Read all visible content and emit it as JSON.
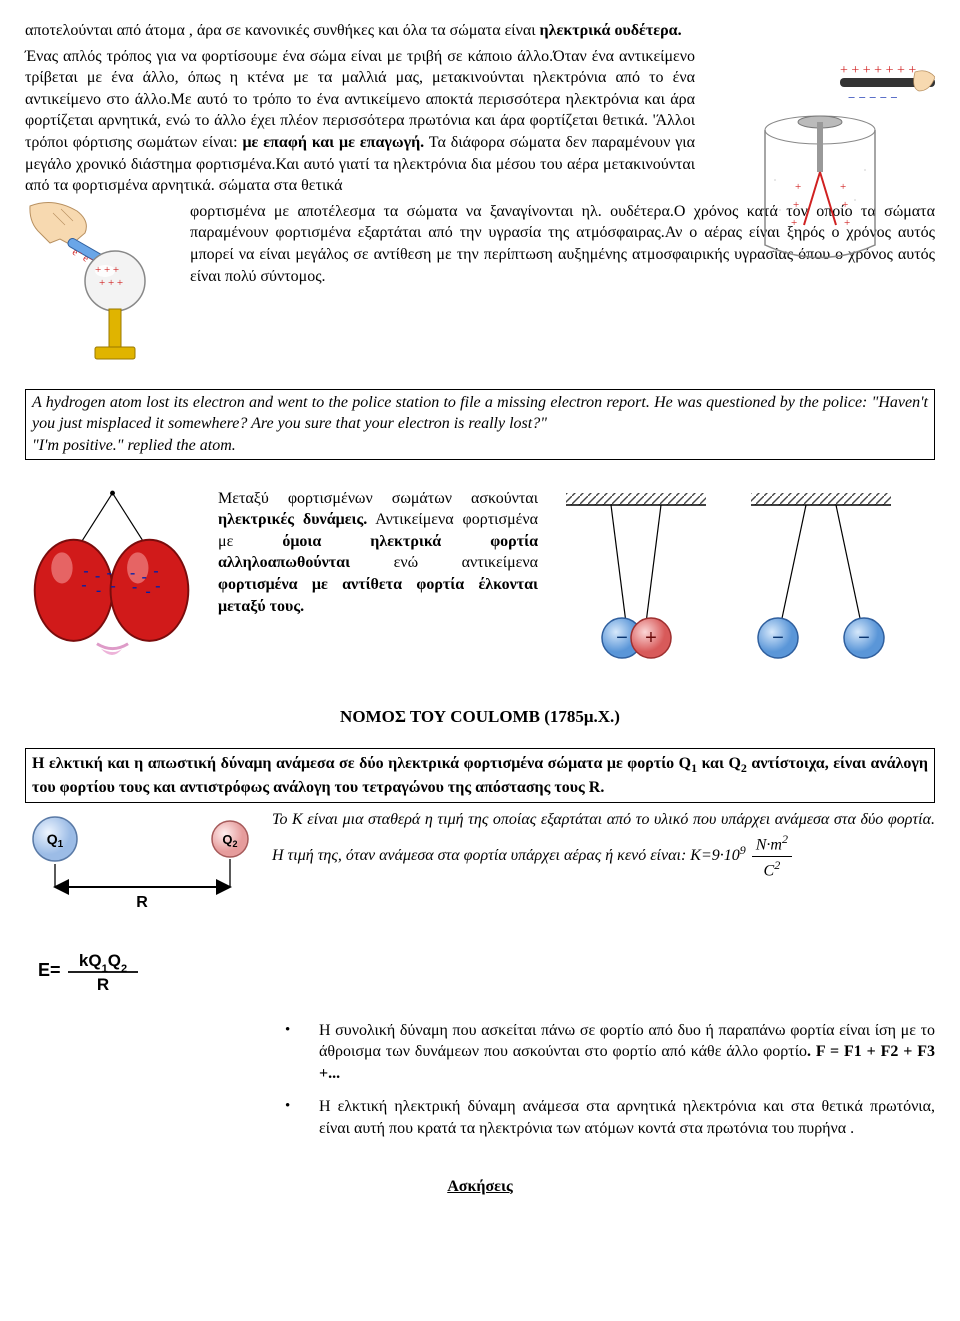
{
  "colors": {
    "text": "#000000",
    "background": "#ffffff",
    "border": "#000000",
    "balloon_fill": "#d11a1a",
    "balloon_stroke": "#7a0c0c",
    "balloon_shine": "#f5baba",
    "hand_fill": "#f7d9b0",
    "sphere_fill": "#e8e8e8",
    "sphere_stroke": "#888888",
    "stand_fill": "#e0b400",
    "charge_minus_fill": "#6aa6e8",
    "charge_minus_stroke": "#2f5f9e",
    "charge_plus_fill": "#e86a6a",
    "charge_plus_stroke": "#9e2f2f",
    "q1_fill": "#c8d8ef",
    "q2_fill": "#efc8c8",
    "red_charge": "#d02020",
    "rod_fill": "#333333",
    "jar_stroke": "#888888",
    "formula_text": "#000000",
    "neg_sign": "#0020aa"
  },
  "section1": {
    "p1_a": "αποτελούνται από άτομα , άρα σε κανονικές συνθήκες και όλα τα σώματα είναι ",
    "p1_b": "ηλεκτρικά ουδέτερα.",
    "p2_a": " Ένας απλός τρόπος για να φορτίσουμε ένα σώμα είναι με τριβή σε κάποιο άλλο.Όταν ένα αντικείμενο τρίβεται με ένα άλλο, όπως η κτένα με τα μαλλιά μας, μετακινούνται ηλεκτρόνια από το ένα αντικείμενο στο άλλο.Με αυτό το τρόπο το ένα αντικείμενο αποκτά περισσότερα ηλεκτρόνια και άρα φορτίζεται αρνητικά, ενώ το άλλο έχει πλέον περισσότερα πρωτόνια και άρα φορτίζεται θετικά. 'Άλλοι τρόποι φόρτισης σωμάτων είναι: ",
    "p2_b": "με επαφή και με επαγωγή.",
    "p2_c": "  Τα διάφορα σώματα δεν παραμένουν για μεγάλο χρονικό διάστημα φορτισμένα.Και αυτό γιατί τα ηλεκτρόνια δια μέσου του αέρα μετακινούνται από τα φορτισμένα αρνητικά. σώματα στα θετικά ",
    "p3": "φορτισμένα με αποτέλεσμα τα σώματα να ξαναγίνονται ηλ. ουδέτερα.Ο χρόνος κατά τον οποίο τα σώματα παραμένουν φορτισμένα εξαρτάται από την υγρασία της ατμόσφαιρας.Αν ο αέρας είναι ξηρός ο χρόνος αυτός μπορεί να είναι μεγάλος σε αντίθεση με την περίπτωση αυξημένης ατμοσφαιρικής υγρασίας όπου ο χρόνος αυτός είναι πολύ σύντομος."
  },
  "joke": {
    "l1": "A hydrogen atom lost its electron and went to the police station to file a missing electron report. He was questioned by the police: \"Haven't you just misplaced it somewhere? Are you sure that your electron is really lost?\"",
    "l2": "\"I'm positive.\" replied the atom."
  },
  "forces": {
    "p_a": "Μεταξύ φορτισμένων  σωμάτων ασκούνται  ",
    "p_b": "ηλεκτρικές δυνάμεις.",
    "p_c": " Αντικείμενα φορτισμένα με ",
    "p_d": "όμοια ηλεκτρικά φορτία αλληλοαπωθούνται",
    "p_e": " ενώ αντικείμενα ",
    "p_f": "φορτισμένα με αντίθετα φορτία έλκονται μεταξύ τους."
  },
  "coulomb_heading": "ΝΟΜΟΣ ΤΟΥ COULOMB (1785μ.Χ.)",
  "coulomb_law": {
    "pre": "Η ελκτική και η απωστική δύναμη ανάμεσα σε δύο ηλεκτρικά φορτισμένα σώματα με φορτίο Q",
    "sub1": "1",
    "mid": " και Q",
    "sub2": "2",
    "post": " αντίστοιχα, είναι ανάλογη του φορτίου τους και αντιστρόφως ανάλογη του τετραγώνου της απόστασης τους R."
  },
  "coulomb_detail": "Το Κ είναι μια σταθερά η τιμή της οποίας εξαρτάται από το υλικό που υπάρχει ανάμεσα στα δύο φορτία. Η τιμή της, όταν ανάμεσα στα φορτία υπάρχει αέρας ή κενό είναι: Κ=9·10",
  "coulomb_exp": "9",
  "coulomb_units_num": "N·m",
  "coulomb_units_num_exp": "2",
  "coulomb_units_den": "C",
  "coulomb_units_den_exp": "2",
  "bullet1_a": "Η συνολική δύναμη που ασκείται πάνω σε φορτίο από δυο ή παραπάνω φορτία είναι ίση με το άθροισμα των δυνάμεων που ασκούνται στο φορτίο από κάθε άλλο φορτίο",
  "bullet1_b": ". F = F1 + F2 + F3 +...",
  "bullet2": "Η ελκτική ηλεκτρική δύναμη ανάμεσα στα αρνητικά ηλεκτρόνια και στα θετικά πρωτόνια,  είναι αυτή που κρατά τα ηλεκτρόνια των ατόμων κοντά στα πρωτόνια του πυρήνα .",
  "exercises": "Ασκήσεις",
  "fig_labels": {
    "q1": "Q",
    "q1_sub": "1",
    "q2": "Q",
    "q2_sub": "2",
    "r": "R",
    "formula_e": "E=",
    "formula_num": "kQ",
    "formula_num2": "1",
    "formula_num3": "Q",
    "formula_num4": "2",
    "formula_den": "R"
  },
  "pendulum": {
    "hatch_stroke": "#444444",
    "string_stroke": "#000000",
    "circle_stroke": "#555555",
    "minus": "−",
    "plus": "+"
  },
  "svg_style": {
    "balloon_marks": [
      [
        60,
        90
      ],
      [
        72,
        95
      ],
      [
        84,
        92
      ],
      [
        58,
        104
      ],
      [
        73,
        110
      ],
      [
        88,
        105
      ],
      [
        108,
        92
      ],
      [
        120,
        96
      ],
      [
        132,
        90
      ],
      [
        110,
        106
      ],
      [
        124,
        111
      ],
      [
        134,
        105
      ]
    ],
    "pendulum_hatch_count": 12
  }
}
